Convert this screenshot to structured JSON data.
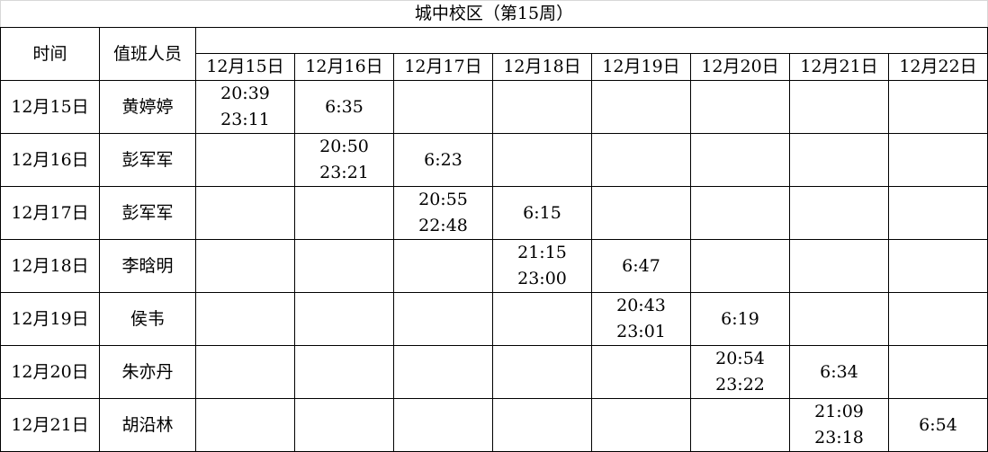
{
  "title": "城中校区（第15周）",
  "headers": {
    "time": "时间",
    "staff": "值班人员"
  },
  "dates": [
    "12月15日",
    "12月16日",
    "12月17日",
    "12月18日",
    "12月19日",
    "12月20日",
    "12月21日",
    "12月22日"
  ],
  "rows": [
    {
      "date": "12月15日",
      "name": "黄婷婷",
      "cells": [
        [
          "20:39",
          "23:11"
        ],
        [
          "6:35"
        ],
        [],
        [],
        [],
        [],
        [],
        []
      ]
    },
    {
      "date": "12月16日",
      "name": "彭军军",
      "cells": [
        [],
        [
          "20:50",
          "23:21"
        ],
        [
          "6:23"
        ],
        [],
        [],
        [],
        [],
        []
      ]
    },
    {
      "date": "12月17日",
      "name": "彭军军",
      "cells": [
        [],
        [],
        [
          "20:55",
          "22:48"
        ],
        [
          "6:15"
        ],
        [],
        [],
        [],
        []
      ]
    },
    {
      "date": "12月18日",
      "name": "李晗明",
      "cells": [
        [],
        [],
        [],
        [
          "21:15",
          "23:00"
        ],
        [
          "6:47"
        ],
        [],
        [],
        []
      ]
    },
    {
      "date": "12月19日",
      "name": "侯韦",
      "cells": [
        [],
        [],
        [],
        [],
        [
          "20:43",
          "23:01"
        ],
        [
          "6:19"
        ],
        [],
        []
      ]
    },
    {
      "date": "12月20日",
      "name": "朱亦丹",
      "cells": [
        [],
        [],
        [],
        [],
        [],
        [
          "20:54",
          "23:22"
        ],
        [
          "6:34"
        ],
        []
      ]
    },
    {
      "date": "12月21日",
      "name": "胡沿林",
      "cells": [
        [],
        [],
        [],
        [],
        [],
        [],
        [
          "21:09",
          "23:18"
        ],
        [
          "6:54"
        ]
      ]
    }
  ]
}
